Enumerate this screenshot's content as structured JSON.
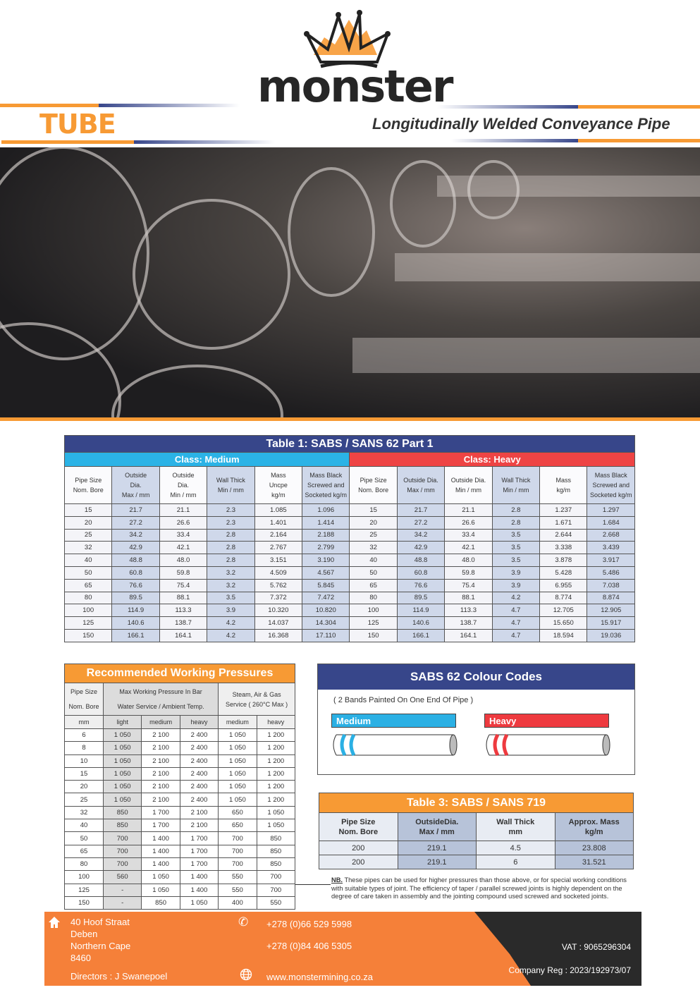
{
  "header": {
    "brand": "monster",
    "title": "TUBE",
    "subtitle": "Longitudinally Welded Conveyance Pipe",
    "colors": {
      "orange": "#f79a34",
      "navy": "#37468a"
    }
  },
  "table1": {
    "title": "Table 1: SABS / SANS 62 Part 1",
    "class_medium": "Class: Medium",
    "class_heavy": "Class: Heavy",
    "headers": [
      "Pipe Size\nNom. Bore",
      "Outside\nDia.\nMax / mm",
      "Outside\nDia.\nMin / mm",
      "Wall Thick\nMin / mm",
      "Mass\nUncpe\nkg/m",
      "Mass Black\nScrewed and\nSocketed kg/m",
      "Pipe Size\nNom. Bore",
      "Outside Dia.\nMax / mm",
      "Outside Dia.\nMin / mm",
      "Wall Thick\nMin / mm",
      "Mass\nkg/m",
      "Mass Black\nScrewed and\nSocketed kg/m"
    ],
    "rows": [
      [
        "15",
        "21.7",
        "21.1",
        "2.3",
        "1.085",
        "1.096",
        "15",
        "21.7",
        "21.1",
        "2.8",
        "1.237",
        "1.297"
      ],
      [
        "20",
        "27.2",
        "26.6",
        "2.3",
        "1.401",
        "1.414",
        "20",
        "27.2",
        "26.6",
        "2.8",
        "1.671",
        "1.684"
      ],
      [
        "25",
        "34.2",
        "33.4",
        "2.8",
        "2.164",
        "2.188",
        "25",
        "34.2",
        "33.4",
        "3.5",
        "2.644",
        "2.668"
      ],
      [
        "32",
        "42.9",
        "42.1",
        "2.8",
        "2.767",
        "2.799",
        "32",
        "42.9",
        "42.1",
        "3.5",
        "3.338",
        "3.439"
      ],
      [
        "40",
        "48.8",
        "48.0",
        "2.8",
        "3.151",
        "3.190",
        "40",
        "48.8",
        "48.0",
        "3.5",
        "3.878",
        "3.917"
      ],
      [
        "50",
        "60.8",
        "59.8",
        "3.2",
        "4.509",
        "4.567",
        "50",
        "60.8",
        "59.8",
        "3.9",
        "5.428",
        "5.486"
      ],
      [
        "65",
        "76.6",
        "75.4",
        "3.2",
        "5.762",
        "5.845",
        "65",
        "76.6",
        "75.4",
        "3.9",
        "6.955",
        "7.038"
      ],
      [
        "80",
        "89.5",
        "88.1",
        "3.5",
        "7.372",
        "7.472",
        "80",
        "89.5",
        "88.1",
        "4.2",
        "8.774",
        "8.874"
      ],
      [
        "100",
        "114.9",
        "113.3",
        "3.9",
        "10.320",
        "10.820",
        "100",
        "114.9",
        "113.3",
        "4.7",
        "12.705",
        "12.905"
      ],
      [
        "125",
        "140.6",
        "138.7",
        "4.2",
        "14.037",
        "14.304",
        "125",
        "140.6",
        "138.7",
        "4.7",
        "15.650",
        "15.917"
      ],
      [
        "150",
        "166.1",
        "164.1",
        "4.2",
        "16.368",
        "17.110",
        "150",
        "166.1",
        "164.1",
        "4.7",
        "18.594",
        "19.036"
      ]
    ]
  },
  "table2": {
    "title": "Recommended Working Pressures",
    "h_pipe": "Pipe Size\nNom. Bore",
    "h_water": "Max Working Pressure In Bar\nWater Service / Ambient Temp.",
    "h_steam": "Steam, Air & Gas\nService ( 260°C Max )",
    "units": [
      "mm",
      "light",
      "medium",
      "heavy",
      "medium",
      "heavy"
    ],
    "rows": [
      [
        "6",
        "1 050",
        "2 100",
        "2 400",
        "1 050",
        "1 200"
      ],
      [
        "8",
        "1 050",
        "2 100",
        "2 400",
        "1 050",
        "1 200"
      ],
      [
        "10",
        "1 050",
        "2 100",
        "2 400",
        "1 050",
        "1 200"
      ],
      [
        "15",
        "1 050",
        "2 100",
        "2 400",
        "1 050",
        "1 200"
      ],
      [
        "20",
        "1 050",
        "2 100",
        "2 400",
        "1 050",
        "1 200"
      ],
      [
        "25",
        "1 050",
        "2 100",
        "2 400",
        "1 050",
        "1 200"
      ],
      [
        "32",
        "850",
        "1 700",
        "2 100",
        "650",
        "1 050"
      ],
      [
        "40",
        "850",
        "1 700",
        "2 100",
        "650",
        "1 050"
      ],
      [
        "50",
        "700",
        "1 400",
        "1 700",
        "700",
        "850"
      ],
      [
        "65",
        "700",
        "1 400",
        "1 700",
        "700",
        "850"
      ],
      [
        "80",
        "700",
        "1 400",
        "1 700",
        "700",
        "850"
      ],
      [
        "100",
        "560",
        "1 050",
        "1 400",
        "550",
        "700"
      ],
      [
        "125",
        "-",
        "1 050",
        "1 400",
        "550",
        "700"
      ],
      [
        "150",
        "-",
        "850",
        "1 050",
        "400",
        "550"
      ]
    ]
  },
  "colour_codes": {
    "title": "SABS 62 Colour Codes",
    "note": "( 2 Bands Painted On One End Of Pipe )",
    "medium": "Medium",
    "heavy": "Heavy",
    "medium_color": "#2bb0e4",
    "heavy_color": "#ee3a3f"
  },
  "table3": {
    "title": "Table 3: SABS / SANS 719",
    "headers": [
      "Pipe Size\nNom. Bore",
      "OutsideDia.\nMax / mm",
      "Wall Thick\nmm",
      "Approx. Mass\nkg/m"
    ],
    "rows": [
      [
        "200",
        "219.1",
        "4.5",
        "23.808"
      ],
      [
        "200",
        "219.1",
        "6",
        "31.521"
      ]
    ]
  },
  "nb": {
    "label": "NB.",
    "text": "These pipes can be used for higher pressures than those above, or for special working conditions with suitable types of joint. The efficiency of taper / parallel screwed joints is highly dependent on the degree of care taken in assembly and the jointing compound used screwed and socketed joints."
  },
  "footer": {
    "address": [
      "40 Hoof Straat",
      "Deben",
      "Northern Cape",
      "8460"
    ],
    "directors": "Directors  : J Swanepoel",
    "phone1": "+278 (0)66 529 5998",
    "phone2": "+278 (0)84 406 5305",
    "website": "www.monstermining.co.za",
    "vat": "VAT  : 9065296304",
    "reg": "Company Reg : 2023/192973/07"
  }
}
